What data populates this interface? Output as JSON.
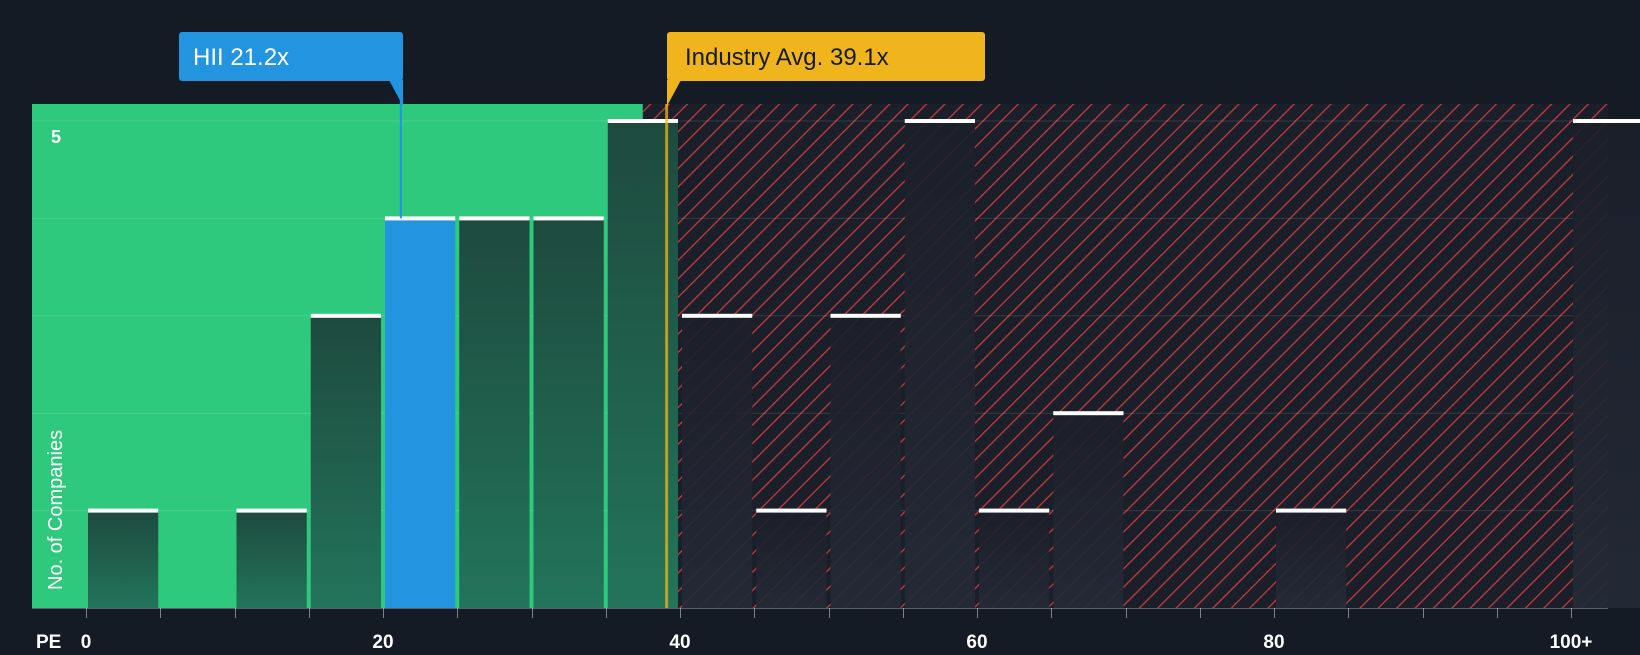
{
  "chart_data": {
    "type": "bar",
    "title": "",
    "xlabel": "PE",
    "ylabel": "No. of Companies",
    "xlim": [
      0,
      100
    ],
    "ylim": [
      0,
      5
    ],
    "x_ticks": [
      {
        "value": 0,
        "label": "0"
      },
      {
        "value": 20,
        "label": "20"
      },
      {
        "value": 40,
        "label": "40"
      },
      {
        "value": 60,
        "label": "60"
      },
      {
        "value": 80,
        "label": "80"
      },
      {
        "value": 100,
        "label": "100+"
      }
    ],
    "y_ticks": [
      {
        "value": 5,
        "label": "5"
      }
    ],
    "bin_width": 5,
    "bins": [
      {
        "start": 0,
        "end": 5,
        "count": 1
      },
      {
        "start": 5,
        "end": 10,
        "count": 0
      },
      {
        "start": 10,
        "end": 15,
        "count": 1
      },
      {
        "start": 15,
        "end": 20,
        "count": 3
      },
      {
        "start": 20,
        "end": 25,
        "count": 4,
        "highlight": true
      },
      {
        "start": 25,
        "end": 30,
        "count": 4
      },
      {
        "start": 30,
        "end": 35,
        "count": 4
      },
      {
        "start": 35,
        "end": 40,
        "count": 5
      },
      {
        "start": 40,
        "end": 45,
        "count": 3
      },
      {
        "start": 45,
        "end": 50,
        "count": 1
      },
      {
        "start": 50,
        "end": 55,
        "count": 3
      },
      {
        "start": 55,
        "end": 60,
        "count": 5
      },
      {
        "start": 60,
        "end": 65,
        "count": 1
      },
      {
        "start": 65,
        "end": 70,
        "count": 2
      },
      {
        "start": 70,
        "end": 75,
        "count": 0
      },
      {
        "start": 75,
        "end": 80,
        "count": 0
      },
      {
        "start": 80,
        "end": 85,
        "count": 1
      },
      {
        "start": 85,
        "end": 90,
        "count": 0
      },
      {
        "start": 90,
        "end": 95,
        "count": 0
      },
      {
        "start": 95,
        "end": 100,
        "count": 0
      },
      {
        "start": 100,
        "end": 105,
        "count": 5
      }
    ],
    "company": {
      "label": "HII 21.2x",
      "value": 21.2
    },
    "industry_avg": {
      "label": "Industry Avg. 39.1x",
      "value": 39.1
    },
    "fair_zone_end": 37.5
  },
  "colors": {
    "background": "#151b24",
    "fair_zone": "#2ec97d",
    "bar_in_zone_top": "#1e4a3e",
    "bar_in_zone_bottom": "#22745a",
    "bar_over_top": "#1b1f2a",
    "bar_over_bottom": "#242a36",
    "highlight_bar": "#2394e0",
    "company_label": "#2394e0",
    "industry_label": "#f0b41c",
    "hatch": "#c43a3e",
    "bar_cap": "#ffffff",
    "axis_text": "#ffffff"
  }
}
